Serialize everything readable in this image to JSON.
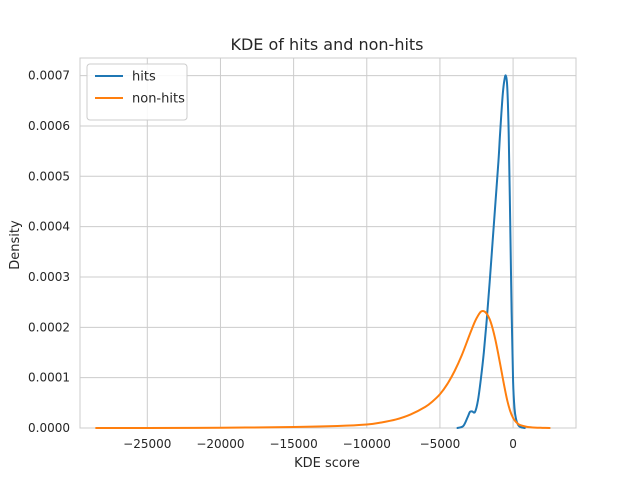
{
  "chart_data": {
    "type": "line",
    "title": "KDE of hits and non-hits",
    "xlabel": "KDE score",
    "ylabel": "Density",
    "xlim": [
      -29600,
      4300
    ],
    "ylim": [
      0,
      0.000735
    ],
    "xticks": [
      -25000,
      -20000,
      -15000,
      -10000,
      -5000,
      0
    ],
    "xtick_labels": [
      "−25000",
      "−20000",
      "−15000",
      "−10000",
      "−5000",
      "0"
    ],
    "yticks": [
      0,
      0.0001,
      0.0002,
      0.0003,
      0.0004,
      0.0005,
      0.0006,
      0.0007
    ],
    "ytick_labels": [
      "0.0000",
      "0.0001",
      "0.0002",
      "0.0003",
      "0.0004",
      "0.0005",
      "0.0006",
      "0.0007"
    ],
    "grid": true,
    "legend_position": "top-left",
    "series": [
      {
        "name": "hits",
        "color": "#1f77b4",
        "x": [
          -3800,
          -3400,
          -3100,
          -2950,
          -2800,
          -2600,
          -2400,
          -2200,
          -2000,
          -1800,
          -1600,
          -1400,
          -1200,
          -1000,
          -900,
          -800,
          -700,
          -600,
          -500,
          -400,
          -300,
          -200,
          -100,
          0,
          100,
          200,
          300,
          400,
          500,
          600,
          700,
          800
        ],
        "y": [
          0,
          4e-06,
          2.2e-05,
          3.2e-05,
          3.3e-05,
          3.2e-05,
          5.5e-05,
          9.8e-05,
          0.00015,
          0.000215,
          0.00029,
          0.00037,
          0.00045,
          0.00053,
          0.00058,
          0.000625,
          0.000665,
          0.00069,
          0.0007,
          0.000678,
          0.000585,
          0.000415,
          0.00023,
          9.3e-05,
          3.8e-05,
          1.8e-05,
          9e-06,
          4e-06,
          2e-06,
          1e-06,
          5e-07,
          0
        ]
      },
      {
        "name": "non-hits",
        "color": "#ff7f0e",
        "x": [
          -28500,
          -25000,
          -20000,
          -15000,
          -12000,
          -10000,
          -9000,
          -8000,
          -7000,
          -6000,
          -5500,
          -5000,
          -4500,
          -4000,
          -3500,
          -3000,
          -2800,
          -2600,
          -2400,
          -2200,
          -2000,
          -1800,
          -1600,
          -1400,
          -1200,
          -1000,
          -800,
          -600,
          -400,
          -200,
          0,
          200,
          400,
          700,
          1000,
          1500,
          2000,
          2500
        ],
        "y": [
          0,
          0,
          5e-07,
          2e-06,
          4e-06,
          7e-06,
          1.1e-05,
          1.7e-05,
          2.7e-05,
          4.2e-05,
          5.3e-05,
          6.7e-05,
          8.7e-05,
          0.000113,
          0.000145,
          0.000183,
          0.000198,
          0.000212,
          0.000223,
          0.000231,
          0.000232,
          0.000227,
          0.000216,
          0.000198,
          0.000174,
          0.000145,
          0.000114,
          8.3e-05,
          5.5e-05,
          3.4e-05,
          2e-05,
          1.2e-05,
          7e-06,
          4e-06,
          2e-06,
          8e-07,
          3e-07,
          0
        ]
      }
    ]
  }
}
